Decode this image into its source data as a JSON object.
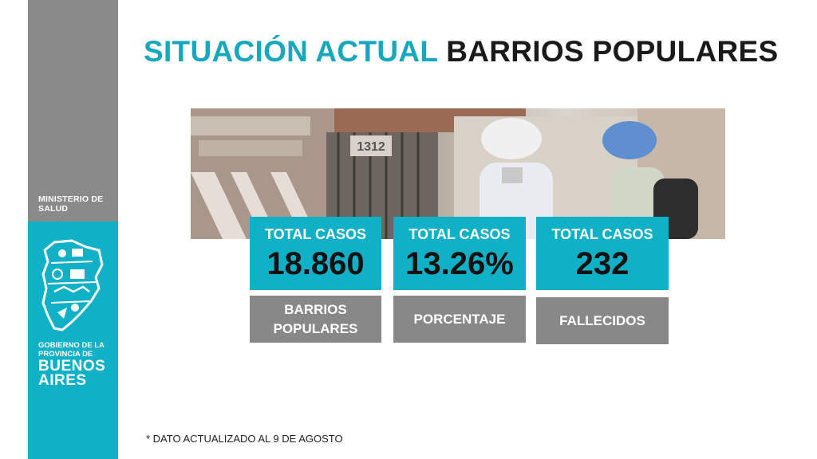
{
  "sidebar": {
    "ministry": "MINISTERIO DE\nSALUD",
    "gov_line1": "GOBIERNO DE LA",
    "gov_line2": "PROVINCIA DE",
    "gov_line3": "BUENOS",
    "gov_line4": "AIRES",
    "logo_icon": "buenos-aires-province-map-icon"
  },
  "title": {
    "part1": "SITUACIÓN ACTUAL",
    "part2": "BARRIOS POPULARES"
  },
  "cards": [
    {
      "label": "TOTAL CASOS",
      "value": "18.860",
      "caption": "BARRIOS\nPOPULARES"
    },
    {
      "label": "TOTAL CASOS",
      "value": "13.26%",
      "caption": "PORCENTAJE"
    },
    {
      "label": "TOTAL CASOS",
      "value": "232",
      "caption": "FALLECIDOS"
    }
  ],
  "footnote": "* DATO ACTUALIZADO AL 9 DE AGOSTO",
  "photo_number": "1312",
  "colors": {
    "accent": "#10b1c7",
    "title_accent": "#17a8bd",
    "gray": "#888888",
    "dark": "#1a1a1a"
  }
}
